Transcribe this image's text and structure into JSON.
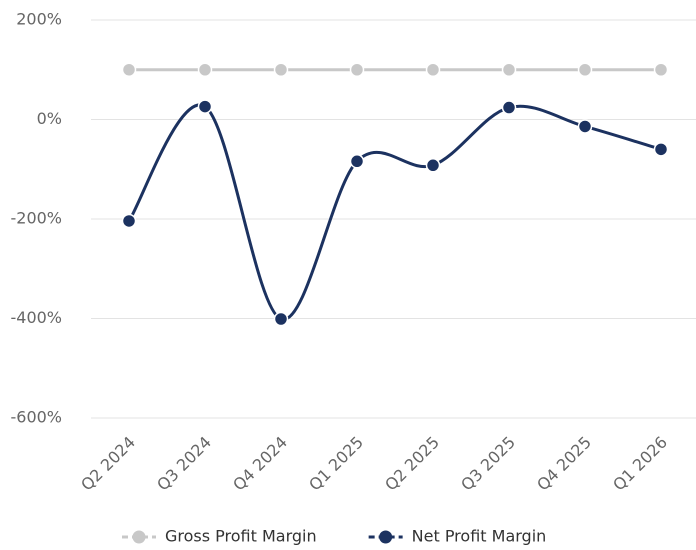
{
  "chart_data": {
    "type": "line",
    "categories": [
      "Q2 2024",
      "Q3 2024",
      "Q4 2024",
      "Q1 2025",
      "Q2 2025",
      "Q3 2025",
      "Q4 2025",
      "Q1 2026"
    ],
    "series": [
      {
        "name": "Gross Profit Margin",
        "color": "#c8c8c8",
        "values": [
          100,
          100,
          100,
          100,
          100,
          100,
          100,
          100
        ]
      },
      {
        "name": "Net Profit Margin",
        "color": "#1c3260",
        "values": [
          -204,
          26,
          -401,
          -84,
          -92,
          24,
          -14,
          -60
        ]
      }
    ],
    "ylim": [
      -600,
      200
    ],
    "yticks": [
      {
        "value": 200,
        "label": "200%"
      },
      {
        "value": 0,
        "label": "0%"
      },
      {
        "value": -200,
        "label": "-200%"
      },
      {
        "value": -400,
        "label": "-400%"
      },
      {
        "value": -600,
        "label": "-600%"
      }
    ],
    "grid": true,
    "smooth": true,
    "legend": "bottom"
  }
}
